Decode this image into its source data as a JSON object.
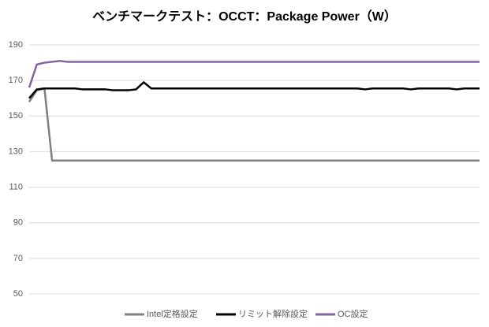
{
  "chart_data": {
    "type": "line",
    "title": "ベンチマークテスト：OCCT：Package Power（W）",
    "categories": [
      null,
      null,
      null,
      null,
      null,
      null,
      null,
      null,
      null,
      null,
      null,
      null,
      null,
      null,
      null,
      null,
      null,
      null,
      null,
      null,
      null,
      null,
      null,
      null,
      null,
      null,
      null,
      null,
      null,
      null,
      null,
      null,
      null,
      null,
      null,
      null,
      null,
      null,
      null,
      null,
      null,
      null,
      null,
      null,
      null,
      null,
      null,
      null,
      null,
      null,
      null,
      null,
      null,
      null,
      null,
      null,
      null,
      null,
      null,
      null
    ],
    "series": [
      {
        "name": "Intel定格設定",
        "color": "#808080",
        "values": [
          158,
          164.5,
          165.5,
          125,
          125,
          125,
          125,
          125,
          125,
          125,
          125,
          125,
          125,
          125,
          125,
          125,
          125,
          125,
          125,
          125,
          125,
          125,
          125,
          125,
          125,
          125,
          125,
          125,
          125,
          125,
          125,
          125,
          125,
          125,
          125,
          125,
          125,
          125,
          125,
          125,
          125,
          125,
          125,
          125,
          125,
          125,
          125,
          125,
          125,
          125,
          125,
          125,
          125,
          125,
          125,
          125,
          125,
          125,
          125,
          125
        ]
      },
      {
        "name": "リミット解除設定",
        "color": "#000000",
        "values": [
          160,
          165,
          165.5,
          165.5,
          165.5,
          165.5,
          165.5,
          165,
          165,
          165,
          165,
          164.5,
          164.5,
          164.5,
          165,
          169,
          165.5,
          165.5,
          165.5,
          165.5,
          165.5,
          165.5,
          165.5,
          165.5,
          165.5,
          165.5,
          165.5,
          165.5,
          165.5,
          165.5,
          165.5,
          165.5,
          165.5,
          165.5,
          165.5,
          165.5,
          165.5,
          165.5,
          165.5,
          165.5,
          165.5,
          165.5,
          165.5,
          165.5,
          165,
          165.5,
          165.5,
          165.5,
          165.5,
          165.5,
          165,
          165.5,
          165.5,
          165.5,
          165.5,
          165.5,
          165,
          165.5,
          165.5,
          165.5
        ]
      },
      {
        "name": "OC設定",
        "color": "#8064a2",
        "values": [
          166,
          179,
          180,
          180.5,
          181,
          180.5,
          180.5,
          180.5,
          180.5,
          180.5,
          180.5,
          180.5,
          180.5,
          180.5,
          180.5,
          180.5,
          180.5,
          180.5,
          180.5,
          180.5,
          180.5,
          180.5,
          180.5,
          180.5,
          180.5,
          180.5,
          180.5,
          180.5,
          180.5,
          180.5,
          180.5,
          180.5,
          180.5,
          180.5,
          180.5,
          180.5,
          180.5,
          180.5,
          180.5,
          180.5,
          180.5,
          180.5,
          180.5,
          180.5,
          180.5,
          180.5,
          180.5,
          180.5,
          180.5,
          180.5,
          180.5,
          180.5,
          180.5,
          180.5,
          180.5,
          180.5,
          180.5,
          180.5,
          180.5,
          180.5
        ]
      }
    ],
    "ylim": [
      50,
      190
    ],
    "yticks": [
      50,
      70,
      90,
      110,
      130,
      150,
      170,
      190
    ],
    "grid": true,
    "legend": "bottom"
  }
}
